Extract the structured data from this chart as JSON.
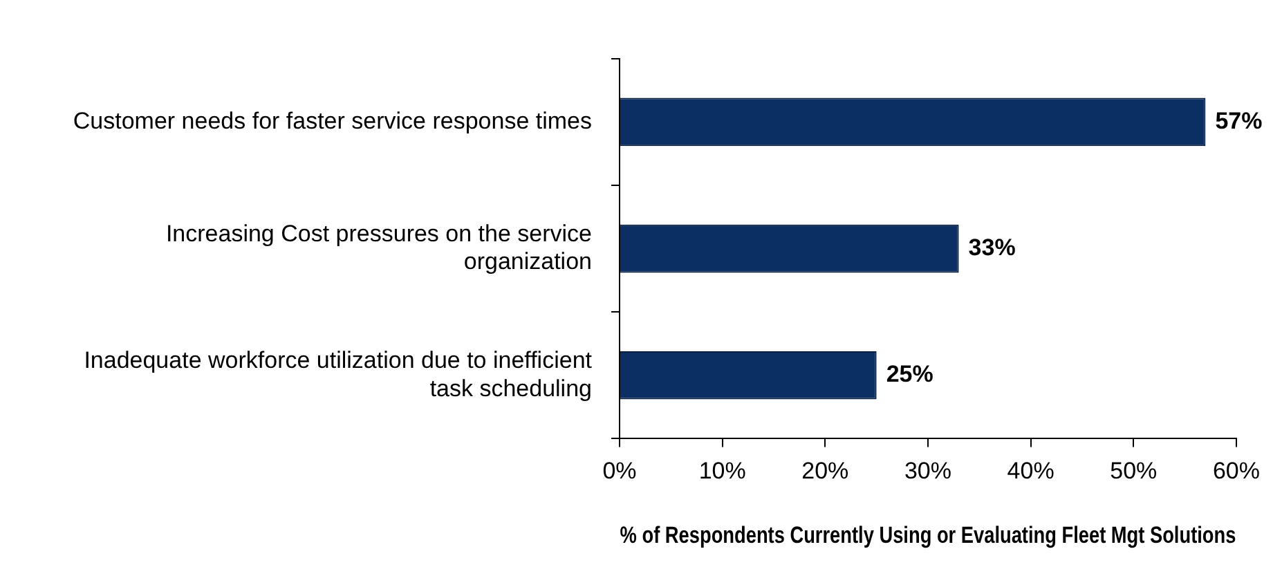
{
  "chart_data": {
    "type": "bar",
    "orientation": "horizontal",
    "xlabel": "% of Respondents Currently Using or Evaluating Fleet Mgt Solutions",
    "categories": [
      "Customer needs for faster service response times",
      "Increasing Cost pressures on the service organization",
      "Inadequate workforce utilization due to inefficient task scheduling"
    ],
    "values": [
      57,
      33,
      25
    ],
    "value_labels": [
      "57%",
      "33%",
      "25%"
    ],
    "color": "#0b2f63",
    "xlim": [
      0,
      60
    ],
    "xticks": [
      {
        "value": 0,
        "label": "0%"
      },
      {
        "value": 10,
        "label": "10%"
      },
      {
        "value": 20,
        "label": "20%"
      },
      {
        "value": 30,
        "label": "30%"
      },
      {
        "value": 40,
        "label": "40%"
      },
      {
        "value": 50,
        "label": "50%"
      },
      {
        "value": 60,
        "label": "60%"
      }
    ],
    "grid": false,
    "legend": false
  }
}
